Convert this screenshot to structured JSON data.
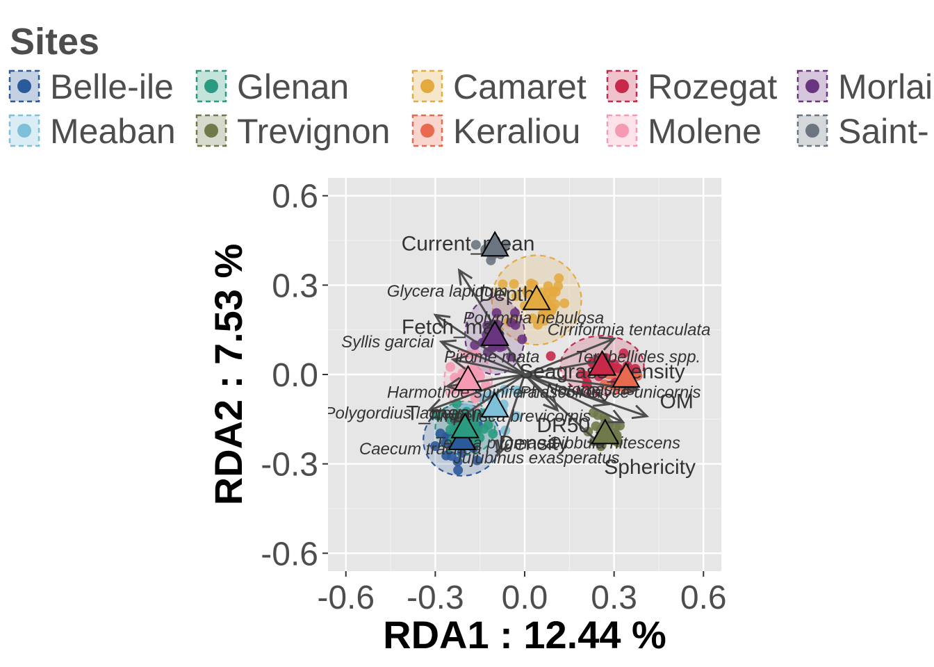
{
  "legend": {
    "title": "Sites",
    "items": [
      {
        "label": "Belle-ile",
        "color": "#2b5a9a"
      },
      {
        "label": "Glenan",
        "color": "#2a9a80"
      },
      {
        "label": "Camaret",
        "color": "#e3aa40"
      },
      {
        "label": "Rozegat",
        "color": "#c8294a"
      },
      {
        "label": "Morlai",
        "color": "#6a3580"
      },
      {
        "label": "Meaban",
        "color": "#7ec0d8"
      },
      {
        "label": "Trevignon",
        "color": "#6e7a4a"
      },
      {
        "label": "Keraliou",
        "color": "#e86a4e"
      },
      {
        "label": "Molene",
        "color": "#f59ab2"
      },
      {
        "label": "Saint-",
        "color": "#6a7580"
      }
    ]
  },
  "chart_data": {
    "type": "scatter",
    "xlabel": "RDA1 :  12.44 %",
    "ylabel": "RDA2 :  7.53 %",
    "xlim": [
      -0.66,
      0.66
    ],
    "ylim": [
      -0.66,
      0.66
    ],
    "x_ticks": [
      -0.6,
      -0.3,
      0.0,
      0.3,
      0.6
    ],
    "y_ticks": [
      -0.6,
      -0.3,
      0.0,
      0.3,
      0.6
    ],
    "x_tick_labels": [
      "-0.6",
      "-0.3",
      "0.0",
      "0.3",
      "0.6"
    ],
    "y_tick_labels": [
      "-0.6",
      "-0.3",
      "0.0",
      "0.3",
      "0.6"
    ],
    "grid": true,
    "legend_position": "top",
    "sites": [
      {
        "name": "Belle-ile",
        "color": "#2b5a9a",
        "centroid": [
          -0.21,
          -0.22
        ],
        "ellipse": [
          0.13,
          0.12
        ],
        "n": 30,
        "spread": [
          0.08,
          0.07
        ]
      },
      {
        "name": "Meaban",
        "color": "#7ec0d8",
        "centroid": [
          -0.1,
          -0.11
        ],
        "ellipse": [
          0.0,
          0.0
        ],
        "n": 20,
        "spread": [
          0.09,
          0.07
        ]
      },
      {
        "name": "Glenan",
        "color": "#2a9a80",
        "centroid": [
          -0.2,
          -0.18
        ],
        "ellipse": [
          0.1,
          0.09
        ],
        "n": 30,
        "spread": [
          0.08,
          0.06
        ]
      },
      {
        "name": "Trevignon",
        "color": "#6e7a4a",
        "centroid": [
          0.27,
          -0.2
        ],
        "ellipse": [
          0.0,
          0.0
        ],
        "n": 25,
        "spread": [
          0.06,
          0.06
        ]
      },
      {
        "name": "Camaret",
        "color": "#e3aa40",
        "centroid": [
          0.04,
          0.25
        ],
        "ellipse": [
          0.15,
          0.15
        ],
        "n": 35,
        "spread": [
          0.09,
          0.09
        ]
      },
      {
        "name": "Keraliou",
        "color": "#e86a4e",
        "centroid": [
          0.34,
          -0.01
        ],
        "ellipse": [
          0.0,
          0.0
        ],
        "n": 22,
        "spread": [
          0.06,
          0.05
        ]
      },
      {
        "name": "Rozegat",
        "color": "#c8294a",
        "centroid": [
          0.26,
          0.03
        ],
        "ellipse": [
          0.14,
          0.1
        ],
        "n": 28,
        "spread": [
          0.09,
          0.05
        ]
      },
      {
        "name": "Molene",
        "color": "#f59ab2",
        "centroid": [
          -0.19,
          -0.02
        ],
        "ellipse": [
          0.08,
          0.1
        ],
        "n": 25,
        "spread": [
          0.06,
          0.07
        ]
      },
      {
        "name": "Morlai",
        "color": "#6a3580",
        "centroid": [
          -0.1,
          0.13
        ],
        "ellipse": [
          0.1,
          0.13
        ],
        "n": 25,
        "spread": [
          0.06,
          0.08
        ]
      },
      {
        "name": "Saint-",
        "color": "#6a7580",
        "centroid": [
          -0.1,
          0.43
        ],
        "ellipse": [
          0.0,
          0.0
        ],
        "n": 14,
        "spread": [
          0.04,
          0.04
        ]
      }
    ],
    "arrows": [
      {
        "x": -0.22,
        "y": 0.35
      },
      {
        "x": -0.3,
        "y": 0.2
      },
      {
        "x": -0.28,
        "y": 0.11
      },
      {
        "x": -0.24,
        "y": 0.05
      },
      {
        "x": -0.26,
        "y": -0.04
      },
      {
        "x": -0.32,
        "y": -0.12
      },
      {
        "x": -0.24,
        "y": -0.16
      },
      {
        "x": -0.09,
        "y": -0.27
      },
      {
        "x": 0.3,
        "y": 0.12
      },
      {
        "x": 0.28,
        "y": 0.05
      },
      {
        "x": 0.38,
        "y": -0.05
      },
      {
        "x": 0.41,
        "y": -0.14
      },
      {
        "x": 0.33,
        "y": -0.16
      },
      {
        "x": 0.28,
        "y": -0.1
      },
      {
        "x": 0.26,
        "y": -0.24
      },
      {
        "x": 0.11,
        "y": -0.12
      }
    ],
    "variable_labels": [
      {
        "text": "Current_mean",
        "x": -0.19,
        "y": 0.44
      },
      {
        "text": "Depth",
        "x": -0.06,
        "y": 0.27
      },
      {
        "text": "Fetch_max",
        "x": -0.24,
        "y": 0.16
      },
      {
        "text": "Seagrass_density",
        "x": 0.26,
        "y": 0.01
      },
      {
        "text": "OM",
        "x": 0.51,
        "y": -0.09
      },
      {
        "text": "T_mean",
        "x": -0.27,
        "y": -0.13
      },
      {
        "text": "DR50",
        "x": 0.13,
        "y": -0.17
      },
      {
        "text": "Density",
        "x": 0.03,
        "y": -0.23
      },
      {
        "text": "Sphericity",
        "x": 0.42,
        "y": -0.31
      }
    ],
    "species_labels": [
      {
        "text": "Glycera lapidum",
        "x": -0.26,
        "y": 0.28
      },
      {
        "text": "Polymnia nebulosa",
        "x": 0.03,
        "y": 0.19
      },
      {
        "text": "Cirriformia tentaculata",
        "x": 0.35,
        "y": 0.15
      },
      {
        "text": "Syllis garciai",
        "x": -0.46,
        "y": 0.11
      },
      {
        "text": "Pirome rnata",
        "x": -0.11,
        "y": 0.06
      },
      {
        "text": "Terebellides spp.",
        "x": 0.38,
        "y": 0.06
      },
      {
        "text": "Harmothoe spinifera",
        "x": -0.21,
        "y": -0.06
      },
      {
        "text": "Phascolion",
        "x": 0.12,
        "y": -0.06
      },
      {
        "text": "Notomastus",
        "x": 0.22,
        "y": -0.05
      },
      {
        "text": "Glyce unicornis",
        "x": 0.4,
        "y": -0.06
      },
      {
        "text": "Polygordius lacteus",
        "x": -0.43,
        "y": -0.13
      },
      {
        "text": "Ampelisca brevicornis",
        "x": -0.05,
        "y": -0.14
      },
      {
        "text": "Caecum trachea",
        "x": -0.35,
        "y": -0.25
      },
      {
        "text": "Tellina pygmaea",
        "x": -0.1,
        "y": -0.23
      },
      {
        "text": "Jujubinus exasperatus",
        "x": 0.04,
        "y": -0.28
      },
      {
        "text": "Gibbula nitescens",
        "x": 0.3,
        "y": -0.23
      }
    ]
  }
}
